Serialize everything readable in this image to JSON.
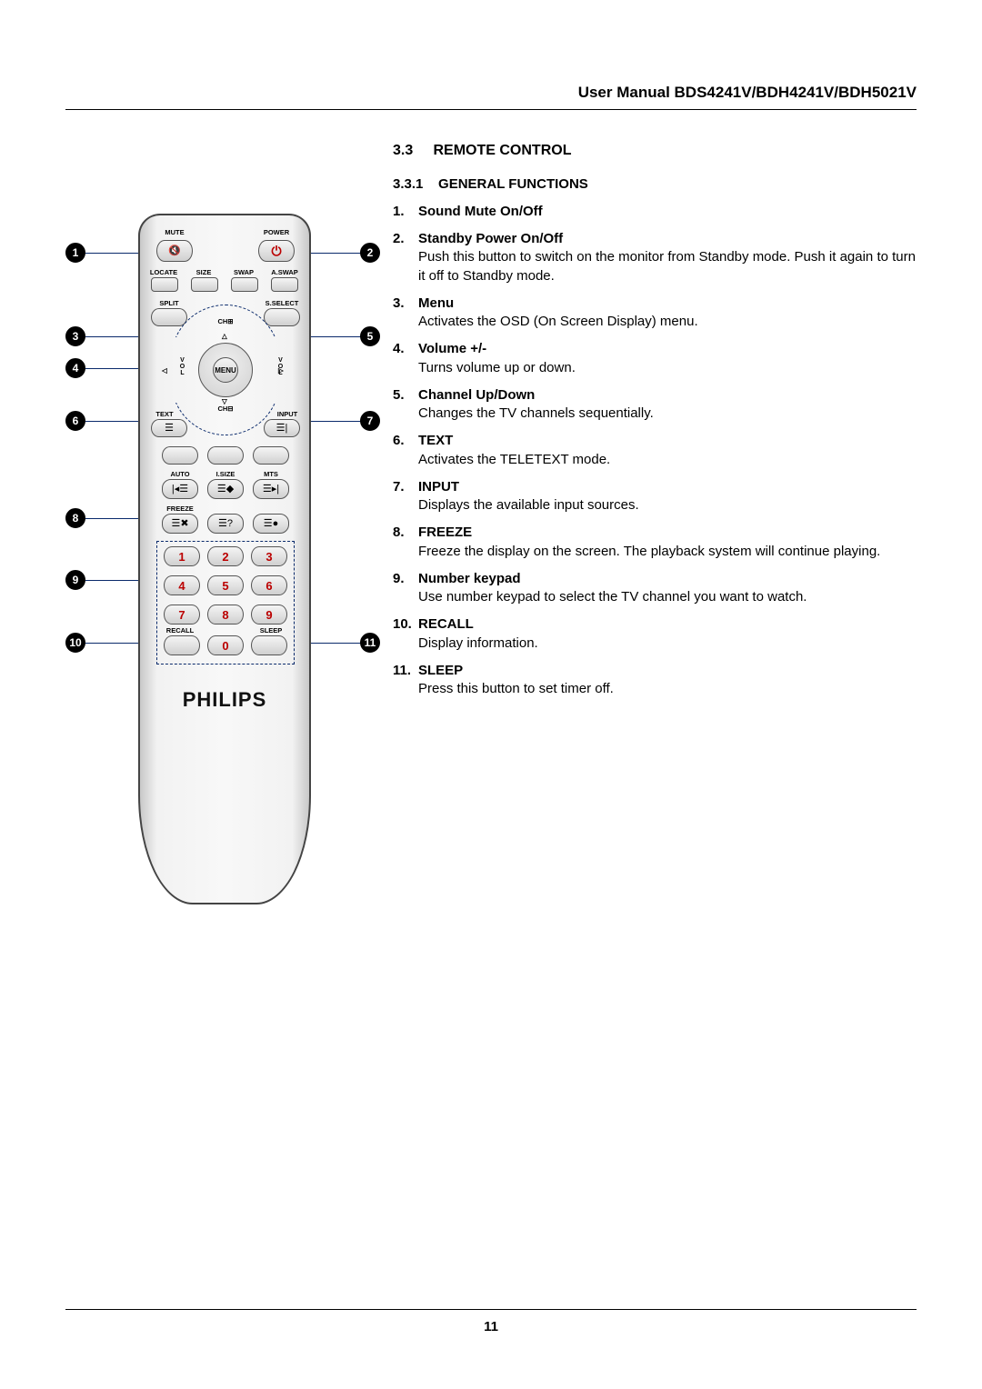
{
  "header": {
    "text": "User Manual BDS4241V/BDH4241V/BDH5021V"
  },
  "section": {
    "num": "3.3",
    "title": "REMOTE CONTROL"
  },
  "subsection": {
    "num": "3.3.1",
    "title": "GENERAL FUNCTIONS"
  },
  "functions": [
    {
      "n": "1.",
      "title": "Sound Mute On/Off",
      "desc": ""
    },
    {
      "n": "2.",
      "title": "Standby Power On/Off",
      "desc": "Push this button to switch on the monitor from Standby mode. Push it again to turn it off to Standby mode."
    },
    {
      "n": "3.",
      "title": "Menu",
      "desc": "Activates the OSD (On Screen Display) menu."
    },
    {
      "n": "4.",
      "title": "Volume +/-",
      "desc": " Turns volume up or down."
    },
    {
      "n": "5.",
      "title": "Channel Up/Down",
      "desc": "Changes the TV channels sequentially."
    },
    {
      "n": "6.",
      "title": "TEXT",
      "desc": "Activates the TELETEXT mode."
    },
    {
      "n": "7.",
      "title": "INPUT",
      "desc": "Displays the available input sources."
    },
    {
      "n": "8.",
      "title": "FREEZE",
      "desc": "Freeze the display on the screen. The playback system will continue playing."
    },
    {
      "n": "9.",
      "title": "Number keypad",
      "desc": "Use number keypad to select the TV channel you want to watch."
    },
    {
      "n": "10.",
      "title": "RECALL",
      "desc": "Display information."
    },
    {
      "n": "11.",
      "title": "SLEEP",
      "desc": "Press this button to set timer off."
    }
  ],
  "remote": {
    "brand": "PHILIPS",
    "labels": {
      "mute": "MUTE",
      "power": "POWER",
      "locate": "LOCATE",
      "size": "SIZE",
      "swap": "SWAP",
      "aswap": "A.SWAP",
      "split": "SPLIT",
      "sselect": "S.SELECT",
      "chplus": "CH⊞",
      "chminus": "CH⊟",
      "vol": "VOL",
      "menu": "MENU",
      "text": "TEXT",
      "input": "INPUT",
      "auto": "AUTO",
      "isize": "I.SIZE",
      "mts": "MTS",
      "freeze": "FREEZE",
      "recall": "RECALL",
      "sleep": "SLEEP"
    },
    "digits": [
      "1",
      "2",
      "3",
      "4",
      "5",
      "6",
      "7",
      "8",
      "9",
      "0"
    ],
    "icons": {
      "mute": "🔇",
      "power": "⏻",
      "text_btn": "☰",
      "input_btn": "☰|",
      "auto_btn": "|◂☰",
      "isize_btn": "☰◆",
      "mts_btn": "☰▸|",
      "freeze_a": "☰✖",
      "freeze_b": "☰?",
      "freeze_c": "☰●"
    }
  },
  "page_number": "11",
  "colors": {
    "line": "#0a2a6b",
    "badge_bg": "#000000",
    "badge_fg": "#ffffff",
    "power_red": "#b00000"
  }
}
